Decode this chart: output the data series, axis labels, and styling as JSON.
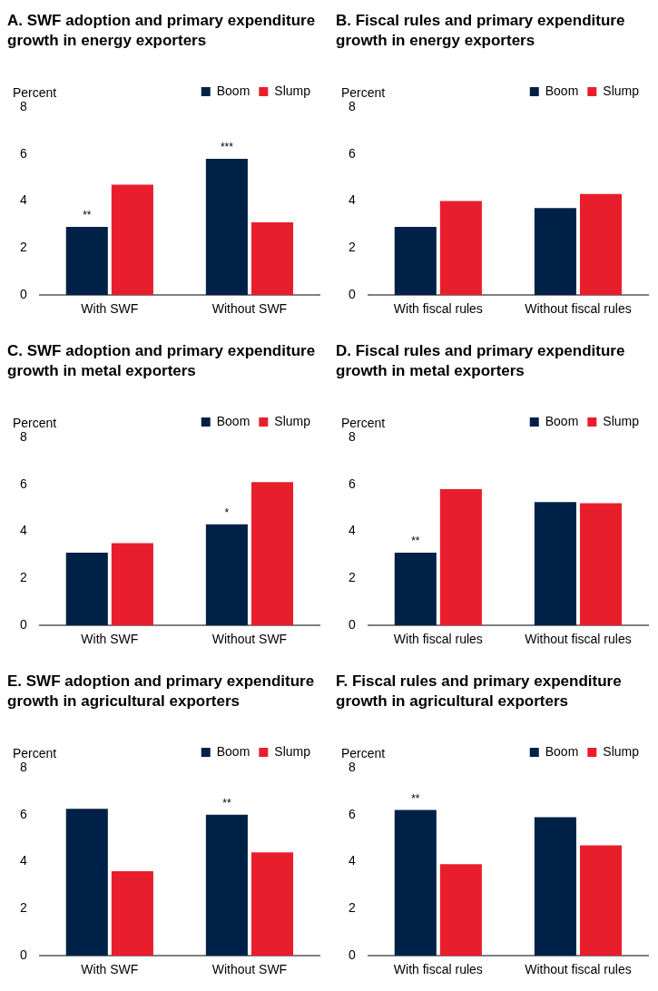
{
  "chart_data": [
    {
      "type": "bar",
      "title": "A. SWF adoption and primary expenditure growth in energy exporters",
      "ylabel": "Percent",
      "categories": [
        "With SWF",
        "Without SWF"
      ],
      "series": [
        {
          "name": "Boom",
          "color": "#002147",
          "values": [
            2.9,
            5.8
          ]
        },
        {
          "name": "Slump",
          "color": "#e91e2d",
          "values": [
            4.7,
            3.1
          ]
        }
      ],
      "ylim": [
        0,
        8
      ],
      "yticks": [
        0,
        2,
        4,
        6,
        8
      ],
      "grid": false,
      "legend": "top right",
      "annotations": [
        {
          "text": "**",
          "x": "With SWF",
          "y": 2.9
        },
        {
          "text": "***",
          "x": "Without SWF",
          "y": 5.8
        }
      ]
    },
    {
      "type": "bar",
      "title": "B. Fiscal rules and primary expenditure growth in energy exporters",
      "ylabel": "Percent",
      "categories": [
        "With fiscal rules",
        "Without fiscal rules"
      ],
      "series": [
        {
          "name": "Boom",
          "color": "#002147",
          "values": [
            2.9,
            3.7
          ]
        },
        {
          "name": "Slump",
          "color": "#e91e2d",
          "values": [
            4.0,
            4.3
          ]
        }
      ],
      "ylim": [
        0,
        8
      ],
      "yticks": [
        0,
        2,
        4,
        6,
        8
      ],
      "grid": false,
      "legend": "top right"
    },
    {
      "type": "bar",
      "title": "C. SWF adoption and primary expenditure growth in metal exporters",
      "ylabel": "Percent",
      "categories": [
        "With SWF",
        "Without SWF"
      ],
      "series": [
        {
          "name": "Boom",
          "color": "#002147",
          "values": [
            3.1,
            4.3
          ]
        },
        {
          "name": "Slump",
          "color": "#e91e2d",
          "values": [
            3.5,
            6.1
          ]
        }
      ],
      "ylim": [
        0,
        8
      ],
      "yticks": [
        0,
        2,
        4,
        6,
        8
      ],
      "grid": false,
      "legend": "top right",
      "annotations": [
        {
          "text": "*",
          "x": "Without SWF",
          "y": 4.3
        }
      ]
    },
    {
      "type": "bar",
      "title": "D. Fiscal rules and primary expenditure growth in metal exporters",
      "ylabel": "Percent",
      "categories": [
        "With fiscal rules",
        "Without fiscal rules"
      ],
      "series": [
        {
          "name": "Boom",
          "color": "#002147",
          "values": [
            3.1,
            5.25
          ]
        },
        {
          "name": "Slump",
          "color": "#e91e2d",
          "values": [
            5.8,
            5.2
          ]
        }
      ],
      "ylim": [
        0,
        8
      ],
      "yticks": [
        0,
        2,
        4,
        6,
        8
      ],
      "grid": false,
      "legend": "top right",
      "annotations": [
        {
          "text": "**",
          "x": "With fiscal rules",
          "y": 3.1
        }
      ]
    },
    {
      "type": "bar",
      "title": "E. SWF adoption and primary expenditure growth in agricultural exporters",
      "ylabel": "Percent",
      "categories": [
        "With SWF",
        "Without SWF"
      ],
      "series": [
        {
          "name": "Boom",
          "color": "#002147",
          "values": [
            6.25,
            6.0
          ]
        },
        {
          "name": "Slump",
          "color": "#e91e2d",
          "values": [
            3.6,
            4.4
          ]
        }
      ],
      "ylim": [
        0,
        8
      ],
      "yticks": [
        0,
        2,
        4,
        6,
        8
      ],
      "grid": false,
      "legend": "top right",
      "annotations": [
        {
          "text": "**",
          "x": "Without SWF",
          "y": 6.0
        }
      ]
    },
    {
      "type": "bar",
      "title": "F. Fiscal rules and primary expenditure growth in agricultural exporters",
      "ylabel": "Percent",
      "categories": [
        "With fiscal rules",
        "Without fiscal rules"
      ],
      "series": [
        {
          "name": "Boom",
          "color": "#002147",
          "values": [
            6.2,
            5.9
          ]
        },
        {
          "name": "Slump",
          "color": "#e91e2d",
          "values": [
            3.9,
            4.7
          ]
        }
      ],
      "ylim": [
        0,
        8
      ],
      "yticks": [
        0,
        2,
        4,
        6,
        8
      ],
      "grid": false,
      "legend": "top right",
      "annotations": [
        {
          "text": "**",
          "x": "With fiscal rules",
          "y": 6.2
        }
      ]
    }
  ]
}
